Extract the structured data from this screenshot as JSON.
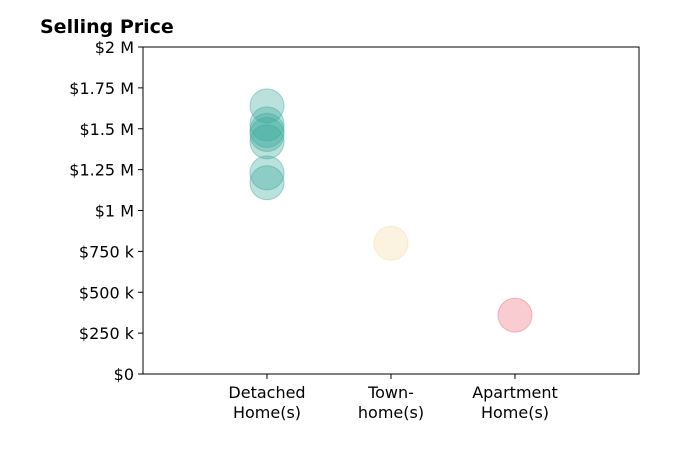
{
  "chart_data": {
    "type": "scatter",
    "title": "Selling Price",
    "xlabel": "",
    "ylabel": "",
    "categories": [
      [
        "Detached",
        "Home(s)"
      ],
      [
        "Town-",
        "home(s)"
      ],
      [
        "Apartment",
        "Home(s)"
      ]
    ],
    "xlim": [
      -1,
      3
    ],
    "ylim": [
      0,
      2000000
    ],
    "yticks": [
      {
        "value": 0,
        "label": "$0"
      },
      {
        "value": 250000,
        "label": "$250 k"
      },
      {
        "value": 500000,
        "label": "$500 k"
      },
      {
        "value": 750000,
        "label": "$750 k"
      },
      {
        "value": 1000000,
        "label": "$1 M"
      },
      {
        "value": 1250000,
        "label": "$1.25 M"
      },
      {
        "value": 1500000,
        "label": "$1.5 M"
      },
      {
        "value": 1750000,
        "label": "$1.75 M"
      },
      {
        "value": 2000000,
        "label": "$2 M"
      }
    ],
    "grid": false,
    "legend": "none",
    "series": [
      {
        "category": 0,
        "color": "#3aa89a",
        "values": [
          1640000,
          1530000,
          1490000,
          1465000,
          1420000,
          1230000,
          1170000
        ]
      },
      {
        "category": 1,
        "color": "#f7d9a6",
        "values": [
          800000
        ]
      },
      {
        "category": 2,
        "color": "#ec6d7a",
        "values": [
          360000
        ]
      }
    ]
  }
}
